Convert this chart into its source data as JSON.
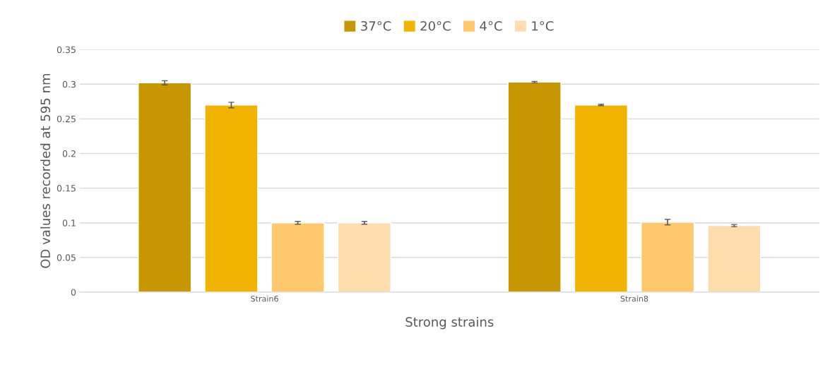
{
  "chart_data": {
    "type": "bar",
    "xlabel": "Strong strains",
    "ylabel": "OD values recorded at 595 nm",
    "categories": [
      "Strain6",
      "Strain8"
    ],
    "series": [
      {
        "name": "37°C",
        "color": "#c89600",
        "values": [
          0.302,
          0.303
        ],
        "errors": [
          0.003,
          0.001
        ]
      },
      {
        "name": "20°C",
        "color": "#f0b400",
        "values": [
          0.27,
          0.27
        ],
        "errors": [
          0.004,
          0.001
        ]
      },
      {
        "name": "4°C",
        "color": "#ffc86c",
        "values": [
          0.1,
          0.101
        ],
        "errors": [
          0.002,
          0.004
        ]
      },
      {
        "name": "1°C",
        "color": "#fedcac",
        "values": [
          0.1,
          0.096
        ],
        "errors": [
          0.002,
          0.0015
        ]
      }
    ],
    "ylim": [
      0,
      0.35
    ],
    "yticks": [
      0,
      0.05,
      0.1,
      0.15,
      0.2,
      0.25,
      0.3,
      0.35
    ],
    "grid": "y",
    "legend": "top"
  }
}
